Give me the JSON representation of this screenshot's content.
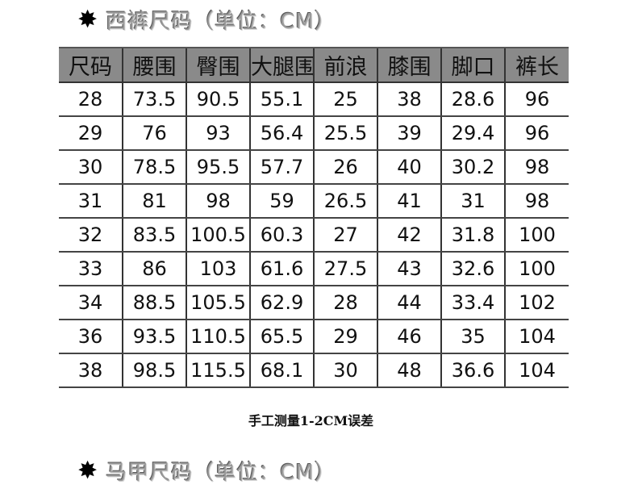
{
  "pants_title": {
    "icon": "asterisk-star-icon",
    "text": "西裤尺码（单位：CM）"
  },
  "table": {
    "headers": [
      "尺码",
      "腰围",
      "臀围",
      "大腿围",
      "前浪",
      "膝围",
      "脚口",
      "裤长"
    ],
    "rows": [
      [
        "28",
        "73.5",
        "90.5",
        "55.1",
        "25",
        "38",
        "28.6",
        "96"
      ],
      [
        "29",
        "76",
        "93",
        "56.4",
        "25.5",
        "39",
        "29.4",
        "96"
      ],
      [
        "30",
        "78.5",
        "95.5",
        "57.7",
        "26",
        "40",
        "30.2",
        "98"
      ],
      [
        "31",
        "81",
        "98",
        "59",
        "26.5",
        "41",
        "31",
        "98"
      ],
      [
        "32",
        "83.5",
        "100.5",
        "60.3",
        "27",
        "42",
        "31.8",
        "100"
      ],
      [
        "33",
        "86",
        "103",
        "61.6",
        "27.5",
        "43",
        "32.6",
        "100"
      ],
      [
        "34",
        "88.5",
        "105.5",
        "62.9",
        "28",
        "44",
        "33.4",
        "102"
      ],
      [
        "36",
        "93.5",
        "110.5",
        "65.5",
        "29",
        "46",
        "35",
        "104"
      ],
      [
        "38",
        "98.5",
        "115.5",
        "68.1",
        "30",
        "48",
        "36.6",
        "104"
      ]
    ]
  },
  "note": "手工测量1-2CM误差",
  "vest_title": {
    "icon": "asterisk-star-icon",
    "text": "马甲尺码（单位：CM）"
  }
}
